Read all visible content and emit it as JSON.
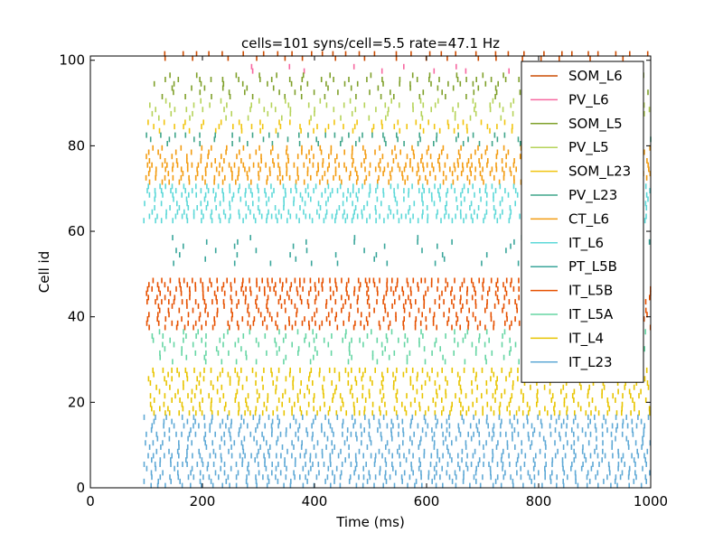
{
  "chart_data": {
    "type": "raster",
    "title": "cells=101 syns/cell=5.5 rate=47.1 Hz",
    "xlabel": "Time (ms)",
    "ylabel": "Cell id",
    "xlim": [
      0,
      1000
    ],
    "ylim": [
      0,
      101
    ],
    "xticks": [
      0,
      200,
      400,
      600,
      800,
      1000
    ],
    "yticks": [
      0,
      20,
      40,
      60,
      80,
      100
    ],
    "legend_position": "top-right",
    "grid": false,
    "populations": [
      {
        "name": "SOM_L6",
        "color": "#cc4c02",
        "cells": [
          100,
          101
        ],
        "rate_class": "medium",
        "start_ms": 120
      },
      {
        "name": "PV_L6",
        "color": "#f768a1",
        "cells": [
          97,
          98
        ],
        "rate_class": "sparse",
        "start_ms": 250
      },
      {
        "name": "SOM_L5",
        "color": "#7fa02a",
        "cells": [
          91,
          96
        ],
        "rate_class": "medium",
        "start_ms": 110
      },
      {
        "name": "PV_L5",
        "color": "#b6d35a",
        "cells": [
          86,
          90
        ],
        "rate_class": "medium",
        "start_ms": 100
      },
      {
        "name": "SOM_L23",
        "color": "#f1c40f",
        "cells": [
          83,
          85
        ],
        "rate_class": "medium",
        "start_ms": 100
      },
      {
        "name": "PV_L23",
        "color": "#3fa58a",
        "cells": [
          80,
          82
        ],
        "rate_class": "medium",
        "start_ms": 100
      },
      {
        "name": "CT_L6",
        "color": "#f39c12",
        "cells": [
          71,
          79
        ],
        "rate_class": "dense",
        "start_ms": 95
      },
      {
        "name": "IT_L6",
        "color": "#5dd8d8",
        "cells": [
          62,
          70
        ],
        "rate_class": "dense",
        "start_ms": 95
      },
      {
        "name": "PT_L5B",
        "color": "#3aa69b",
        "cells": [
          52,
          58
        ],
        "rate_class": "sparse",
        "start_ms": 110
      },
      {
        "name": "IT_L5B",
        "color": "#e65100",
        "cells": [
          37,
          48
        ],
        "rate_class": "dense",
        "start_ms": 100
      },
      {
        "name": "IT_L5A",
        "color": "#66d6a4",
        "cells": [
          29,
          36
        ],
        "rate_class": "medium",
        "start_ms": 100
      },
      {
        "name": "IT_L4",
        "color": "#e8c400",
        "cells": [
          17,
          27
        ],
        "rate_class": "dense",
        "start_ms": 100
      },
      {
        "name": "IT_L23",
        "color": "#5fa9d6",
        "cells": [
          0,
          16
        ],
        "rate_class": "dense",
        "start_ms": 95
      }
    ]
  }
}
